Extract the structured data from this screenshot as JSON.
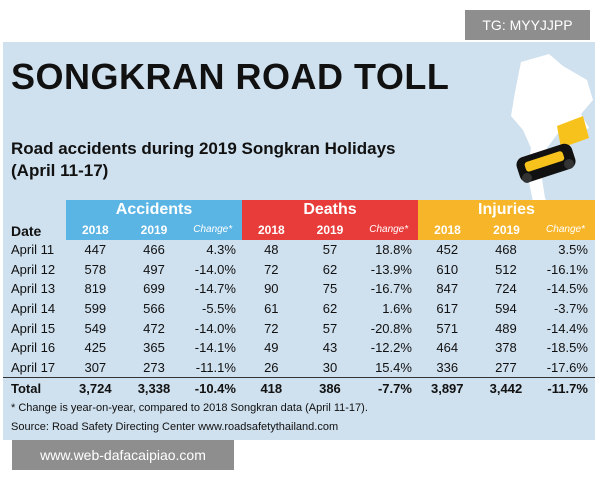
{
  "watermark_top": "TG: MYYJJPP",
  "watermark_bottom": "www.web-dafacaipiao.com",
  "title": "SONGKRAN ROAD TOLL",
  "subtitle_line1": "Road accidents during 2019 Songkran Holidays",
  "subtitle_line2": "(April 11-17)",
  "date_header": "Date",
  "groups": {
    "accidents": "Accidents",
    "deaths": "Deaths",
    "injuries": "Injuries"
  },
  "sub_headers": [
    "2018",
    "2019",
    "Change*"
  ],
  "rows": [
    {
      "date": "April 11",
      "a18": "447",
      "a19": "466",
      "ac": "4.3%",
      "d18": "48",
      "d19": "57",
      "dc": "18.8%",
      "i18": "452",
      "i19": "468",
      "ic": "3.5%"
    },
    {
      "date": "April 12",
      "a18": "578",
      "a19": "497",
      "ac": "-14.0%",
      "d18": "72",
      "d19": "62",
      "dc": "-13.9%",
      "i18": "610",
      "i19": "512",
      "ic": "-16.1%"
    },
    {
      "date": "April 13",
      "a18": "819",
      "a19": "699",
      "ac": "-14.7%",
      "d18": "90",
      "d19": "75",
      "dc": "-16.7%",
      "i18": "847",
      "i19": "724",
      "ic": "-14.5%"
    },
    {
      "date": "April 14",
      "a18": "599",
      "a19": "566",
      "ac": "-5.5%",
      "d18": "61",
      "d19": "62",
      "dc": "1.6%",
      "i18": "617",
      "i19": "594",
      "ic": "-3.7%"
    },
    {
      "date": "April 15",
      "a18": "549",
      "a19": "472",
      "ac": "-14.0%",
      "d18": "72",
      "d19": "57",
      "dc": "-20.8%",
      "i18": "571",
      "i19": "489",
      "ic": "-14.4%"
    },
    {
      "date": "April 16",
      "a18": "425",
      "a19": "365",
      "ac": "-14.1%",
      "d18": "49",
      "d19": "43",
      "dc": "-12.2%",
      "i18": "464",
      "i19": "378",
      "ic": "-18.5%"
    },
    {
      "date": "April 17",
      "a18": "307",
      "a19": "273",
      "ac": "-11.1%",
      "d18": "26",
      "d19": "30",
      "dc": "15.4%",
      "i18": "336",
      "i19": "277",
      "ic": "-17.6%"
    }
  ],
  "total": {
    "date": "Total",
    "a18": "3,724",
    "a19": "3,338",
    "ac": "-10.4%",
    "d18": "418",
    "d19": "386",
    "dc": "-7.7%",
    "i18": "3,897",
    "i19": "3,442",
    "ic": "-11.7%"
  },
  "footnote": "* Change is year-on-year, compared to 2018 Songkran data (April 11-17).",
  "source": "Source: Road Safety Directing Center www.roadsafetythailand.com",
  "colors": {
    "background": "#cfe0ee",
    "accidents": "#5bb5e4",
    "deaths": "#e73c3a",
    "injuries": "#f7b529"
  },
  "icons": [
    "thailand-map-icon",
    "crashed-car-icon"
  ]
}
